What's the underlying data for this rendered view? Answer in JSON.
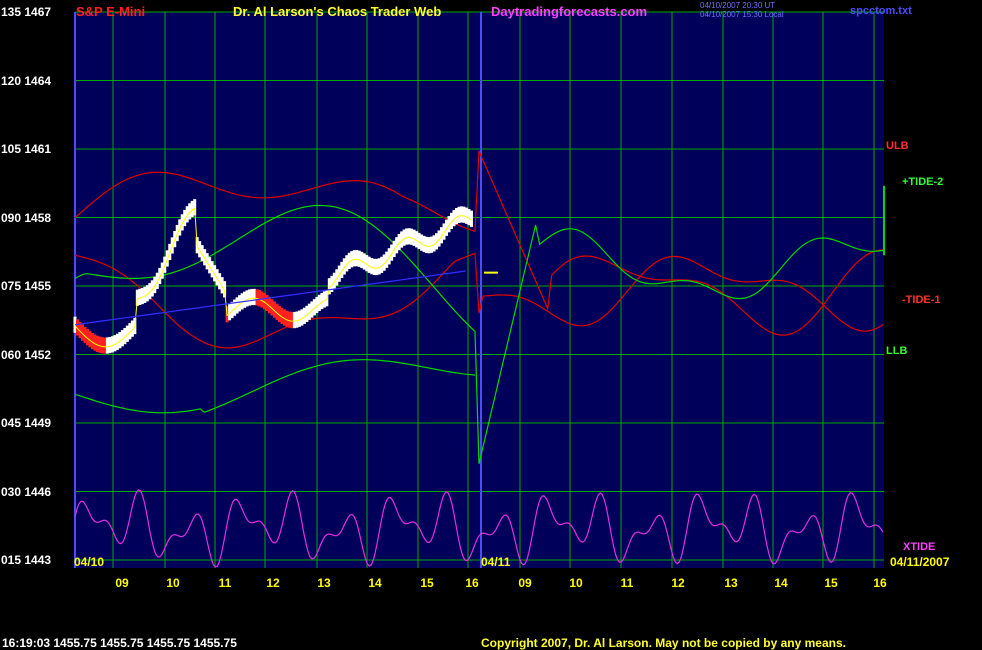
{
  "header": {
    "instrument": "S&P E-Mini",
    "title": "Dr. Al Larson's Chaos Trader Web",
    "site": "Daytradingforecasts.com",
    "timestamp_line1": "04/10/2007 20:30 UT",
    "timestamp_line2": "04/10/2007 15:30 Local",
    "filename": "spcctom.txt"
  },
  "footer": {
    "quote": "16:19:03  1455.75  1455.75  1455.75  1455.75",
    "copyright": "Copyright 2007, Dr. Al Larson. May not be copied by any means."
  },
  "colors": {
    "background": "#000000",
    "plot_area": "#00005a",
    "grid": "#00a800",
    "axis": "#4c4cff",
    "ulb_line": "#e00000",
    "llb_line": "#00d800",
    "xtide_line": "#e030e0",
    "price_up": "#ffffff",
    "price_down": "#ff2020",
    "ma_line": "#ffff00",
    "flux_line": "#3030ff"
  },
  "chart_data": {
    "type": "line",
    "y_axis_ticks": [
      {
        "index": "135",
        "price": "1467"
      },
      {
        "index": "120",
        "price": "1464"
      },
      {
        "index": "105",
        "price": "1461"
      },
      {
        "index": "090",
        "price": "1458"
      },
      {
        "index": "075",
        "price": "1455"
      },
      {
        "index": "060",
        "price": "1452"
      },
      {
        "index": "045",
        "price": "1449"
      },
      {
        "index": "030",
        "price": "1446"
      },
      {
        "index": "015",
        "price": "1443"
      }
    ],
    "ylim": [
      1443,
      1467
    ],
    "x_axis_ticks": [
      "09",
      "10",
      "11",
      "12",
      "13",
      "14",
      "15",
      "16",
      "09",
      "10",
      "11",
      "12",
      "13",
      "14",
      "15",
      "16"
    ],
    "date_labels": [
      "04/10",
      "04/11",
      "04/11/2007"
    ],
    "series_labels": [
      {
        "name": "ULB",
        "color": "#ff3030"
      },
      {
        "name": "+TIDE-2",
        "color": "#30ff30"
      },
      {
        "name": "-TIDE-1",
        "color": "#ff3030"
      },
      {
        "name": "LLB",
        "color": "#30ff30"
      },
      {
        "name": "XTIDE",
        "color": "#ff40ff"
      }
    ],
    "grid": true,
    "series": [
      {
        "key": "ulb",
        "t": [
          0,
          0.06,
          0.12,
          0.2,
          0.3,
          0.36,
          0.45,
          0.5,
          0.58,
          0.68,
          0.8,
          0.9,
          1,
          1.08,
          1.12,
          1.18,
          1.26,
          1.36,
          1.5,
          1.58,
          1.68,
          1.76,
          1.86,
          1.94,
          2.02,
          2.1,
          2.2,
          2.3,
          2.4,
          2.5,
          2.6,
          2.68,
          2.8,
          2.9,
          3.0,
          3.1,
          3.2,
          3.3,
          3.4,
          3.5,
          3.6,
          3.7,
          3.8,
          3.9,
          4.0,
          4.1,
          4.2,
          4.3,
          4.4,
          4.5,
          4.6,
          4.7,
          4.8,
          4.9,
          5.0,
          5.1,
          5.2,
          5.3,
          5.4,
          5.5,
          5.6,
          5.7,
          5.8,
          5.9,
          6.0,
          6.1,
          6.2,
          6.3,
          6.4,
          6.5,
          6.6,
          6.7,
          6.8,
          6.9,
          7.0,
          7.1,
          7.2,
          7.3,
          7.4,
          7.5,
          7.6,
          7.7,
          7.8,
          7.9,
          8.0,
          8.1,
          8.2,
          8.3,
          8.4,
          8.5,
          8.6,
          8.7,
          8.8,
          8.9,
          9.0,
          9.1,
          9.2,
          9.3,
          9.4,
          9.5,
          9.6,
          9.7,
          9.8,
          9.9,
          10.0,
          10.1,
          10.2,
          10.3,
          10.4,
          10.5,
          10.6,
          10.7,
          10.8,
          10.9,
          11.0,
          11.1,
          11.2,
          11.3,
          11.4,
          11.5,
          11.6,
          11.7,
          11.8,
          11.9,
          12.0,
          12.1,
          12.2,
          12.3,
          12.4,
          12.5,
          12.6,
          12.7,
          12.8,
          12.9,
          13.0,
          13.1,
          13.2,
          13.3,
          13.4,
          13.5,
          13.6,
          13.7,
          13.8,
          13.9,
          14.0,
          14.1,
          14.2,
          14.3,
          14.4,
          14.5,
          14.6,
          14.7,
          14.8,
          14.9,
          15.0,
          15.1,
          15.2,
          15.3,
          15.4,
          15.5,
          15.6,
          15.7,
          15.8,
          15.9,
          16.0,
          16.1,
          16.2,
          16.3,
          16.4,
          16.5,
          16.6,
          16.7,
          16.8,
          16.9,
          17.0,
          17.1,
          17.2,
          17.3,
          17.4,
          17.5,
          17.6,
          17.7,
          17.8,
          17.9,
          18.0,
          18.1,
          18.2,
          18.3,
          18.4,
          18.5,
          18.6,
          18.7,
          18.8,
          18.9,
          19.0,
          19.1,
          19.2,
          19.3,
          19.4,
          19.5,
          19.6,
          19.7,
          19.8,
          19.9
        ],
        "y": []
      }
    ]
  }
}
